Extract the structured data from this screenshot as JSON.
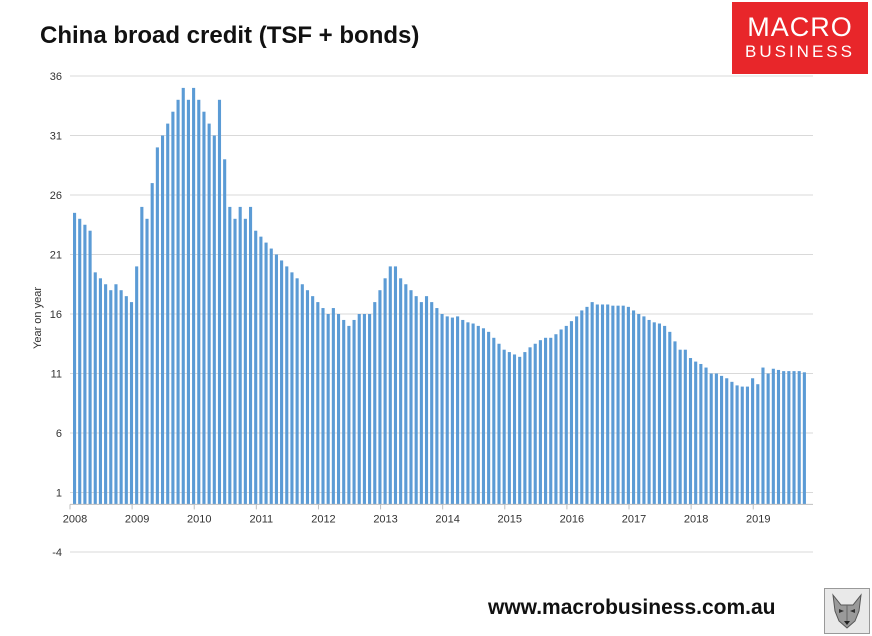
{
  "title": "China broad credit (TSF + bonds)",
  "logo": {
    "line1": "MACRO",
    "line2": "BUSINESS",
    "color": "#e8262a"
  },
  "footer": "www.macrobusiness.com.au",
  "icons": {
    "mascot": "wolf-icon"
  },
  "chart_data": {
    "type": "bar",
    "ylabel": "Year on year",
    "xlabel": "",
    "ylim": [
      -4,
      36
    ],
    "yticks": [
      -4,
      1,
      6,
      11,
      16,
      21,
      26,
      31,
      36
    ],
    "xticks": [
      "2008",
      "2009",
      "2010",
      "2011",
      "2012",
      "2013",
      "2014",
      "2015",
      "2016",
      "2017",
      "2018",
      "2019"
    ],
    "grid": true,
    "bar_color": "#5b9bd5",
    "start": "2008-01",
    "frequency": "monthly",
    "values": [
      24.5,
      24.0,
      23.5,
      23.0,
      19.5,
      19.0,
      18.5,
      18.0,
      18.5,
      18.0,
      17.5,
      17.0,
      20.0,
      25.0,
      24.0,
      27.0,
      30.0,
      31.0,
      32.0,
      33.0,
      34.0,
      35.0,
      34.0,
      35.0,
      34.0,
      33.0,
      32.0,
      31.0,
      34.0,
      29.0,
      25.0,
      24.0,
      25.0,
      24.0,
      25.0,
      23.0,
      22.5,
      22.0,
      21.5,
      21.0,
      20.5,
      20.0,
      19.5,
      19.0,
      18.5,
      18.0,
      17.5,
      17.0,
      16.5,
      16.0,
      16.5,
      16.0,
      15.5,
      15.0,
      15.5,
      16.0,
      16.0,
      16.0,
      17.0,
      18.0,
      19.0,
      20.0,
      20.0,
      19.0,
      18.5,
      18.0,
      17.5,
      17.0,
      17.5,
      17.0,
      16.5,
      16.0,
      15.8,
      15.7,
      15.8,
      15.5,
      15.3,
      15.2,
      15.0,
      14.8,
      14.5,
      14.0,
      13.5,
      13.0,
      12.8,
      12.6,
      12.4,
      12.8,
      13.2,
      13.5,
      13.8,
      14.0,
      14.0,
      14.3,
      14.7,
      15.0,
      15.4,
      15.8,
      16.3,
      16.6,
      17.0,
      16.8,
      16.8,
      16.8,
      16.7,
      16.7,
      16.7,
      16.6,
      16.3,
      16.0,
      15.8,
      15.5,
      15.3,
      15.2,
      15.0,
      14.5,
      13.7,
      13.0,
      13.0,
      12.3,
      12.0,
      11.8,
      11.5,
      11.0,
      11.0,
      10.8,
      10.6,
      10.3,
      10.0,
      9.9,
      9.9,
      10.6,
      10.1,
      11.5,
      11.0,
      11.4,
      11.3,
      11.2,
      11.2,
      11.2,
      11.2,
      11.1
    ]
  }
}
